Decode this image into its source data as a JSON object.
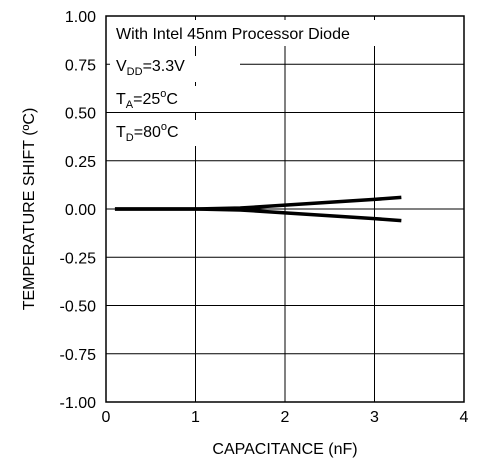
{
  "chart_data": {
    "type": "line",
    "xlabel": "CAPACITANCE (nF)",
    "ylabel": "TEMPERATURE SHIFT (ºC)",
    "xlim": [
      0,
      4
    ],
    "ylim": [
      -1.0,
      1.0
    ],
    "x_ticks": [
      "0",
      "1",
      "2",
      "3",
      "4"
    ],
    "y_ticks": [
      "1.00",
      "0.75",
      "0.50",
      "0.25",
      "0.00",
      "-0.25",
      "-0.50",
      "-0.75",
      "-1.00"
    ],
    "grid": true,
    "annotations": {
      "line1": "With Intel 45nm Processor Diode",
      "vdd_main": "V",
      "vdd_sub": "DD",
      "vdd_rest": "=3.3V",
      "ta_main": "T",
      "ta_sub": "A",
      "ta_rest_a": "=25",
      "ta_sup": "o",
      "ta_rest_b": "C",
      "td_main": "T",
      "td_sub": "D",
      "td_rest_a": "=80",
      "td_sup": "o",
      "td_rest_b": "C"
    },
    "series": [
      {
        "x": [
          0.1,
          1.0,
          1.5,
          2.0,
          2.5,
          3.0,
          3.3
        ],
        "y": [
          0.0,
          0.0,
          0.005,
          0.02,
          0.035,
          0.05,
          0.06
        ]
      },
      {
        "x": [
          0.1,
          1.0,
          1.5,
          2.0,
          2.5,
          3.0,
          3.3
        ],
        "y": [
          0.0,
          0.0,
          -0.005,
          -0.02,
          -0.035,
          -0.05,
          -0.06
        ]
      }
    ]
  }
}
